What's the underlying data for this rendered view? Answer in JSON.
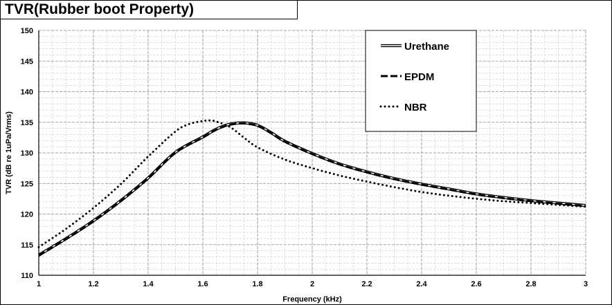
{
  "chart_data": {
    "type": "line",
    "title": "TVR(Rubber boot Property)",
    "xlabel": "Frequency (kHz)",
    "ylabel": "TVR (dB re 1uPa/Vrms)",
    "xlim": [
      1,
      3
    ],
    "ylim": [
      110,
      150
    ],
    "x_ticks": [
      "1",
      "1.2",
      "1.4",
      "1.6",
      "1.8",
      "2",
      "2.2",
      "2.4",
      "2.6",
      "2.8",
      "3"
    ],
    "y_ticks": [
      "110",
      "115",
      "120",
      "125",
      "130",
      "135",
      "140",
      "145",
      "150"
    ],
    "x_tick_values": [
      1,
      1.2,
      1.4,
      1.6,
      1.8,
      2,
      2.2,
      2.4,
      2.6,
      2.8,
      3
    ],
    "y_tick_values": [
      110,
      115,
      120,
      125,
      130,
      135,
      140,
      145,
      150
    ],
    "x_minor_step": 0.05,
    "y_minor_step": 1,
    "grid": true,
    "legend_position": "top-right",
    "series": [
      {
        "name": "Urethane",
        "style": "double-line",
        "color": "#000000",
        "x": [
          1.0,
          1.1,
          1.2,
          1.3,
          1.4,
          1.5,
          1.6,
          1.65,
          1.7,
          1.75,
          1.8,
          1.85,
          1.9,
          2.0,
          2.1,
          2.2,
          2.3,
          2.4,
          2.5,
          2.6,
          2.7,
          2.8,
          2.9,
          3.0
        ],
        "y": [
          113.3,
          116.0,
          118.9,
          122.2,
          125.9,
          130.1,
          132.6,
          133.9,
          134.7,
          134.9,
          134.5,
          133.3,
          131.9,
          129.9,
          128.2,
          126.9,
          125.8,
          124.9,
          124.1,
          123.3,
          122.7,
          122.2,
          121.8,
          121.4
        ]
      },
      {
        "name": "EPDM",
        "style": "dashed",
        "color": "#000000",
        "x": [
          1.0,
          1.1,
          1.2,
          1.3,
          1.4,
          1.5,
          1.6,
          1.65,
          1.7,
          1.75,
          1.8,
          1.85,
          1.9,
          2.0,
          2.1,
          2.2,
          2.3,
          2.4,
          2.5,
          2.6,
          2.7,
          2.8,
          2.9,
          3.0
        ],
        "y": [
          113.2,
          115.9,
          118.8,
          122.1,
          125.8,
          130.0,
          132.5,
          133.8,
          134.6,
          134.8,
          134.4,
          133.2,
          131.8,
          129.8,
          128.1,
          126.8,
          125.7,
          124.8,
          124.0,
          123.2,
          122.6,
          122.1,
          121.7,
          121.3
        ]
      },
      {
        "name": "NBR",
        "style": "dotted",
        "color": "#000000",
        "x": [
          1.0,
          1.1,
          1.2,
          1.3,
          1.4,
          1.5,
          1.55,
          1.6,
          1.625,
          1.65,
          1.7,
          1.75,
          1.8,
          1.9,
          2.0,
          2.1,
          2.2,
          2.3,
          2.4,
          2.5,
          2.6,
          2.7,
          2.8,
          2.9,
          3.0
        ],
        "y": [
          114.6,
          117.6,
          121.0,
          124.9,
          129.4,
          133.5,
          134.7,
          135.2,
          135.3,
          135.1,
          134.2,
          132.5,
          130.9,
          128.9,
          127.5,
          126.3,
          125.3,
          124.4,
          123.6,
          123.0,
          122.5,
          122.1,
          121.8,
          121.5,
          121.2
        ]
      }
    ]
  }
}
